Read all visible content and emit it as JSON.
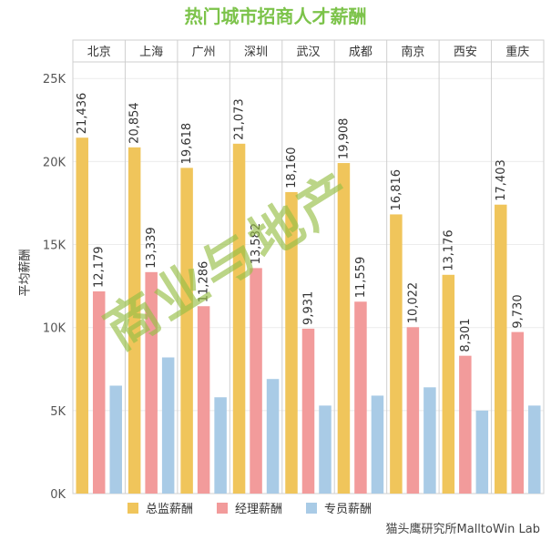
{
  "chart_data": {
    "type": "bar",
    "title": "热门城市招商人才薪酬",
    "ylabel": "平均薪酬",
    "xlabel": "",
    "ylim": [
      0,
      26000
    ],
    "y_ticks": [
      0,
      5000,
      10000,
      15000,
      20000,
      25000
    ],
    "y_tick_labels": [
      "0K",
      "5K",
      "10K",
      "15K",
      "20K",
      "25K"
    ],
    "categories": [
      "北京",
      "上海",
      "广州",
      "深圳",
      "武汉",
      "成都",
      "南京",
      "西安",
      "重庆"
    ],
    "series": [
      {
        "name": "总监薪酬",
        "color": "#f0c55b",
        "values": [
          21436,
          20854,
          19618,
          21073,
          18160,
          19908,
          16816,
          13176,
          17403
        ],
        "labels": [
          "21,436",
          "20,854",
          "19,618",
          "21,073",
          "18,160",
          "19,908",
          "16,816",
          "13,176",
          "17,403"
        ]
      },
      {
        "name": "经理薪酬",
        "color": "#f29b9b",
        "values": [
          12179,
          13339,
          11286,
          13582,
          9931,
          11559,
          10022,
          8301,
          9730
        ],
        "labels": [
          "12,179",
          "13,339",
          "11,286",
          "13,582",
          "9,931",
          "11,559",
          "10,022",
          "8,301",
          "9,730"
        ]
      },
      {
        "name": "专员薪酬",
        "color": "#a9cbe6",
        "values": [
          6500,
          8200,
          5800,
          6900,
          5300,
          5900,
          6400,
          5000,
          5300
        ],
        "labels": []
      }
    ],
    "grid": true,
    "legend_position": "bottom"
  },
  "watermark": "商业与地产",
  "footer": "猫头鹰研究所MalltoWin Lab"
}
